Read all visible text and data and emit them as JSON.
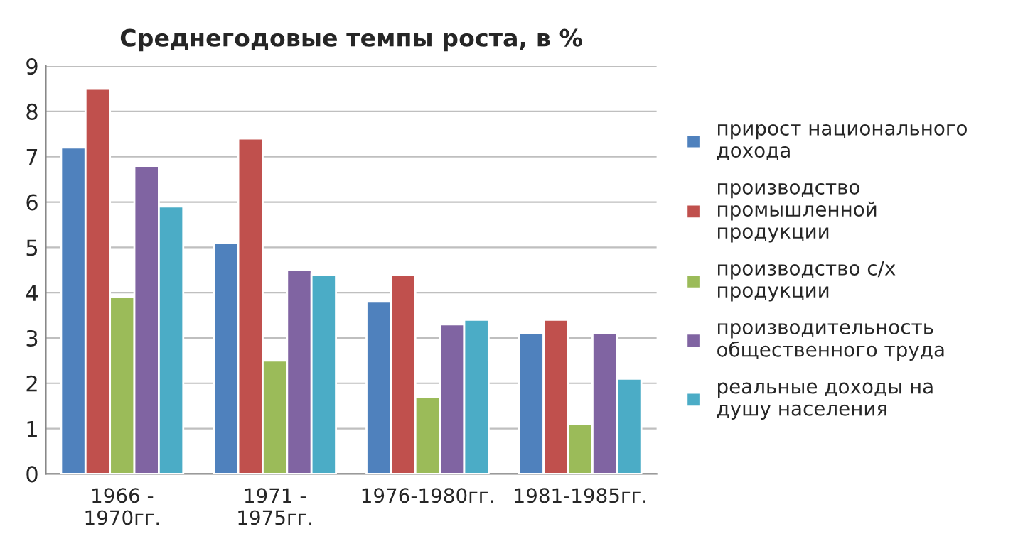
{
  "chart_data": {
    "type": "bar",
    "title": "Среднегодовые темпы роста, в %",
    "categories": [
      "1966 -\n1970гг.",
      "1971 -\n1975гг.",
      "1976-1980гг.",
      "1981-1985гг."
    ],
    "series": [
      {
        "name": "прирост национального\nдохода",
        "color": "#4f81bd",
        "values": [
          7.2,
          5.1,
          3.8,
          3.1
        ]
      },
      {
        "name": "производство\nпромышленной\nпродукции",
        "color": "#c0504d",
        "values": [
          8.5,
          7.4,
          4.4,
          3.4
        ]
      },
      {
        "name": "производство с/х\nпродукции",
        "color": "#9bbb59",
        "values": [
          3.9,
          2.5,
          1.7,
          1.1
        ]
      },
      {
        "name": "производительность\nобщественного труда",
        "color": "#8064a2",
        "values": [
          6.8,
          4.5,
          3.3,
          3.1
        ]
      },
      {
        "name": "реальные доходы на\nдушу населения",
        "color": "#4bacc6",
        "values": [
          5.9,
          4.4,
          3.4,
          2.1
        ]
      }
    ],
    "ylim": [
      0,
      9
    ],
    "yticks": [
      0,
      1,
      2,
      3,
      4,
      5,
      6,
      7,
      8,
      9
    ],
    "grid": "y",
    "legend": "right"
  }
}
